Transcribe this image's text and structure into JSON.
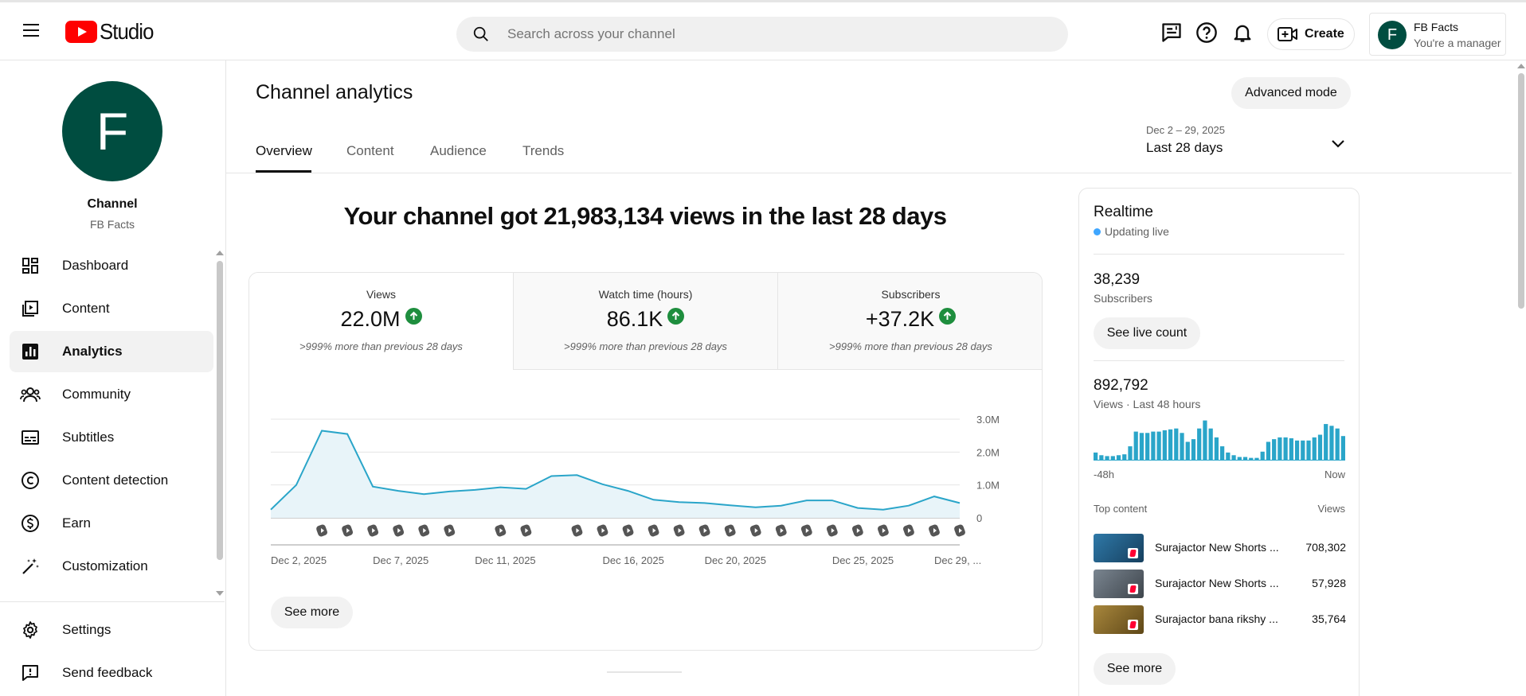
{
  "header": {
    "logo_text": "Studio",
    "search_placeholder": "Search across your channel",
    "create_label": "Create",
    "account": {
      "initial": "F",
      "name": "FB Facts",
      "role": "You're a manager"
    }
  },
  "sidebar": {
    "avatar_initial": "F",
    "channel_label": "Channel",
    "channel_name": "FB Facts",
    "items": [
      {
        "label": "Dashboard",
        "icon": "dashboard-icon"
      },
      {
        "label": "Content",
        "icon": "content-icon"
      },
      {
        "label": "Analytics",
        "icon": "analytics-icon",
        "active": true
      },
      {
        "label": "Community",
        "icon": "community-icon"
      },
      {
        "label": "Subtitles",
        "icon": "subtitles-icon"
      },
      {
        "label": "Content detection",
        "icon": "copyright-icon"
      },
      {
        "label": "Earn",
        "icon": "dollar-icon"
      },
      {
        "label": "Customization",
        "icon": "wand-icon"
      }
    ],
    "bottom_items": [
      {
        "label": "Settings",
        "icon": "gear-icon"
      },
      {
        "label": "Send feedback",
        "icon": "feedback-icon"
      }
    ]
  },
  "main": {
    "title": "Channel analytics",
    "advanced_mode_label": "Advanced mode",
    "tabs": [
      {
        "label": "Overview",
        "active": true
      },
      {
        "label": "Content"
      },
      {
        "label": "Audience"
      },
      {
        "label": "Trends"
      }
    ],
    "date_range": "Dec 2 – 29, 2025",
    "date_label": "Last 28 days",
    "headline": "Your channel got 21,983,134 views in the last 28 days",
    "kpis": [
      {
        "label": "Views",
        "value": "22.0M",
        "change": ">999% more than previous 28 days",
        "active": true
      },
      {
        "label": "Watch time (hours)",
        "value": "86.1K",
        "change": ">999% more than previous 28 days"
      },
      {
        "label": "Subscribers",
        "value": "+37.2K",
        "change": ">999% more than previous 28 days"
      }
    ],
    "see_more_label": "See more"
  },
  "chart_data": {
    "type": "area",
    "series": [
      {
        "values": [
          0.25,
          1.0,
          2.65,
          2.55,
          0.95,
          0.82,
          0.72,
          0.8,
          0.85,
          0.93,
          0.88,
          1.27,
          1.3,
          1.02,
          0.82,
          0.55,
          0.48,
          0.45,
          0.38,
          0.32,
          0.37,
          0.53,
          0.53,
          0.3,
          0.25,
          0.37,
          0.65,
          0.45
        ]
      }
    ],
    "y_ticks": [
      "3.0M",
      "2.0M",
      "1.0M",
      "0"
    ],
    "ylim": [
      0,
      3.0
    ],
    "x_tick_labels": [
      "Dec 2, 2025",
      "Dec 7, 2025",
      "Dec 11, 2025",
      "Dec 16, 2025",
      "Dec 20, 2025",
      "Dec 25, 2025",
      "Dec 29, ..."
    ],
    "x_tick_days": [
      0,
      4,
      8,
      13,
      17,
      22,
      26
    ],
    "shorts_marker_days": [
      2,
      3,
      4,
      5,
      6,
      7,
      9,
      10,
      12,
      13,
      14,
      15,
      16,
      17,
      18,
      19,
      20,
      21,
      22,
      23,
      24,
      25,
      26,
      27
    ],
    "grid": true,
    "color": "#2aa5c9"
  },
  "realtime": {
    "title": "Realtime",
    "live_label": "Updating live",
    "subscribers_value": "38,239",
    "subscribers_label": "Subscribers",
    "see_live_count_label": "See live count",
    "views_value": "892,792",
    "views_label": "Views · Last 48 hours",
    "bars": [
      0.18,
      0.12,
      0.1,
      0.1,
      0.12,
      0.14,
      0.32,
      0.65,
      0.62,
      0.62,
      0.65,
      0.65,
      0.68,
      0.7,
      0.72,
      0.62,
      0.42,
      0.48,
      0.72,
      0.9,
      0.72,
      0.52,
      0.32,
      0.18,
      0.12,
      0.08,
      0.08,
      0.06,
      0.06,
      0.2,
      0.42,
      0.48,
      0.52,
      0.52,
      0.5,
      0.45,
      0.45,
      0.45,
      0.52,
      0.58,
      0.82,
      0.78,
      0.72,
      0.55
    ],
    "axis_start": "-48h",
    "axis_end": "Now",
    "top_content_label": "Top content",
    "views_col_label": "Views",
    "top_content": [
      {
        "title": "Surajactor New Shorts ...",
        "views": "708,302",
        "thumb_color": "#1f5c8a"
      },
      {
        "title": "Surajactor New Shorts ...",
        "views": "57,928",
        "thumb_color": "#5a6470"
      },
      {
        "title": "Surajactor bana rikshy ...",
        "views": "35,764",
        "thumb_color": "#8a6a2a"
      }
    ],
    "see_more_label": "See more"
  }
}
